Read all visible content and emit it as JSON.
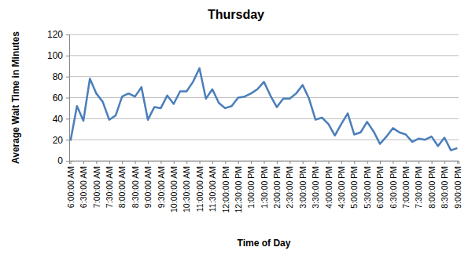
{
  "chart_data": {
    "type": "line",
    "title": "Thursday",
    "x_label": "Time of Day",
    "y_label": "Average Wait Time in Minutes",
    "categories": [
      "6:00:00 AM",
      null,
      "6:30:00 AM",
      null,
      "7:00:00 AM",
      null,
      "7:30:00 AM",
      null,
      "8:00:00 AM",
      null,
      "8:30:00 AM",
      null,
      "9:00:00 AM",
      null,
      "9:30:00 AM",
      null,
      "10:00:00 AM",
      null,
      "10:30:00 AM",
      null,
      "11:00:00 AM",
      null,
      "11:30:00 AM",
      null,
      "12:00:00 PM",
      null,
      "12:30:00 PM",
      null,
      "1:00:00 PM",
      null,
      "1:30:00 PM",
      null,
      "2:00:00 PM",
      null,
      "2:30:00 PM",
      null,
      "3:00:00 PM",
      null,
      "3:30:00 PM",
      null,
      "4:00:00 PM",
      null,
      "4:30:00 PM",
      null,
      "5:00:00 PM",
      null,
      "5:30:00 PM",
      null,
      "6:00:00 PM",
      null,
      "6:30:00 PM",
      null,
      "7:00:00 PM",
      null,
      "7:30:00 PM",
      null,
      "8:00:00 PM",
      null,
      "8:30:00 PM",
      null,
      "9:00:00 PM"
    ],
    "values": [
      19,
      52,
      38,
      78,
      64,
      56,
      39,
      43,
      61,
      64,
      61,
      70,
      39,
      51,
      50,
      62,
      54,
      66,
      66,
      75,
      88,
      59,
      68,
      55,
      50,
      52,
      60,
      61,
      64,
      68,
      75,
      62,
      51,
      59,
      59,
      64,
      72,
      59,
      39,
      41,
      35,
      24,
      35,
      45,
      25,
      27,
      37,
      28,
      16,
      23,
      31,
      27,
      25,
      18,
      21,
      20,
      23,
      14,
      22,
      10,
      12
    ],
    "color": "#4a7ebb",
    "ylim": [
      0,
      120
    ],
    "yticks": [
      0,
      20,
      40,
      60,
      80,
      100,
      120
    ],
    "grid": true
  }
}
